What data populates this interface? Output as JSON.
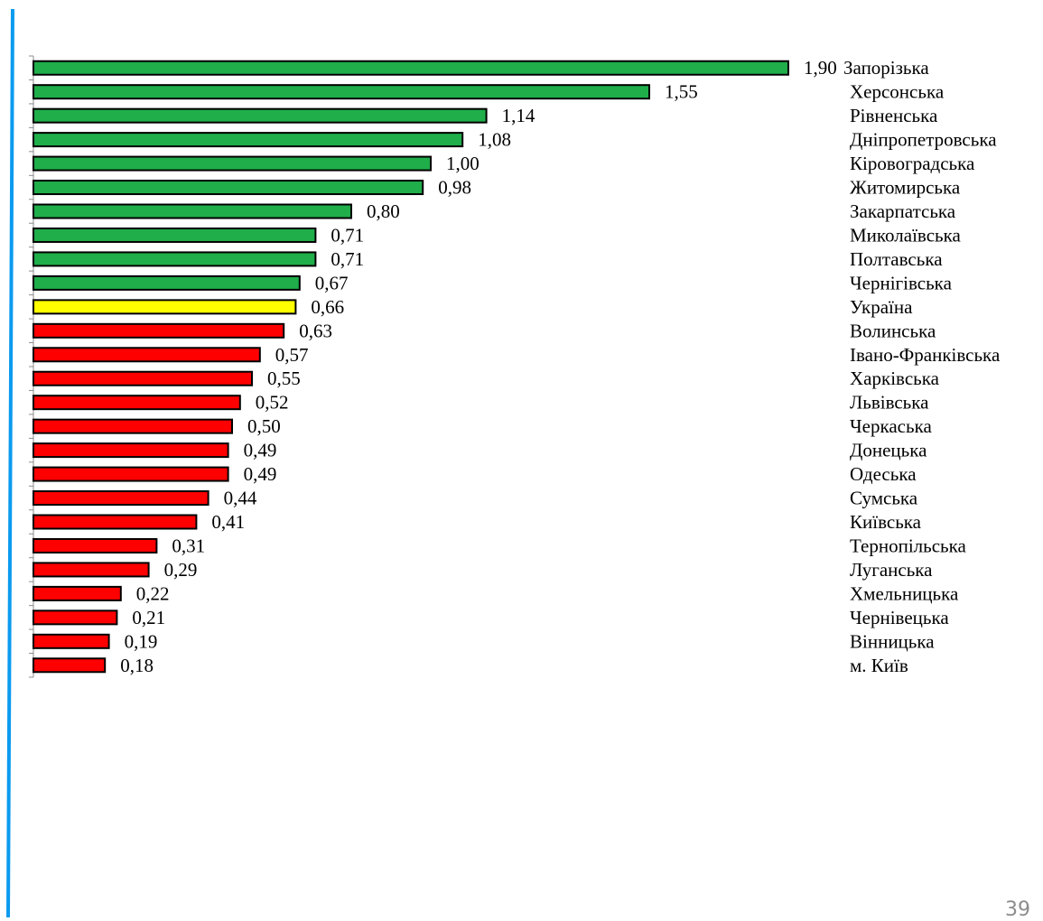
{
  "chart_data": {
    "type": "bar",
    "orientation": "horizontal",
    "title": "",
    "xlabel": "",
    "ylabel": "",
    "xlim": [
      0,
      1.9
    ],
    "grid": false,
    "legend": "none",
    "categories": [
      "Запорізька",
      "Херсонська",
      "Рівненська",
      "Дніпропетровська",
      "Кіровоградська",
      "Житомирська",
      "Закарпатська",
      "Миколаївська",
      "Полтавська",
      "Чернігівська",
      "Україна",
      "Волинська",
      "Івано-Франківська",
      "Харківська",
      "Львівська",
      "Черкаська",
      "Донецька",
      "Одеська",
      "Сумська",
      "Київська",
      "Тернопільська",
      "Луганська",
      "Хмельницька",
      "Чернівецька",
      "Вінницька",
      "м. Київ"
    ],
    "values": [
      1.9,
      1.55,
      1.14,
      1.08,
      1.0,
      0.98,
      0.8,
      0.71,
      0.71,
      0.67,
      0.66,
      0.63,
      0.57,
      0.55,
      0.52,
      0.5,
      0.49,
      0.49,
      0.44,
      0.41,
      0.31,
      0.29,
      0.22,
      0.21,
      0.19,
      0.18
    ],
    "value_labels": [
      "1,90",
      "1,55",
      "1,14",
      "1,08",
      "1,00",
      "0,98",
      "0,80",
      "0,71",
      "0,71",
      "0,67",
      "0,66",
      "0,63",
      "0,57",
      "0,55",
      "0,52",
      "0,50",
      "0,49",
      "0,49",
      "0,44",
      "0,41",
      "0,31",
      "0,29",
      "0,22",
      "0,21",
      "0,19",
      "0,18"
    ],
    "bar_colors": [
      "#1fae4a",
      "#1fae4a",
      "#1fae4a",
      "#1fae4a",
      "#1fae4a",
      "#1fae4a",
      "#1fae4a",
      "#1fae4a",
      "#1fae4a",
      "#1fae4a",
      "#ffff00",
      "#ff0000",
      "#ff0000",
      "#ff0000",
      "#ff0000",
      "#ff0000",
      "#ff0000",
      "#ff0000",
      "#ff0000",
      "#ff0000",
      "#ff0000",
      "#ff0000",
      "#ff0000",
      "#ff0000",
      "#ff0000",
      "#ff0000"
    ]
  },
  "colors": {
    "above_average": "#1fae4a",
    "average": "#ffff00",
    "below_average": "#ff0000",
    "bar_outline": "#000000",
    "left_accent_line": "#0b9bef"
  },
  "page_number": "39"
}
